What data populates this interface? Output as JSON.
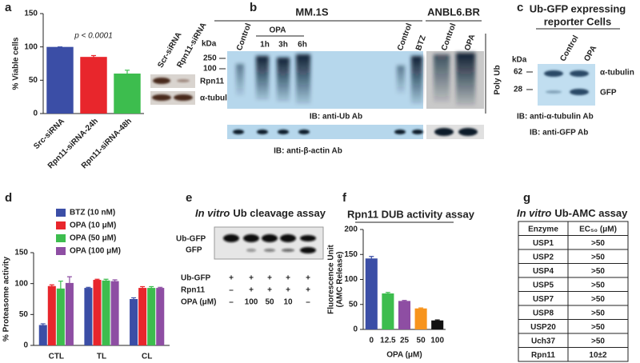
{
  "panel_labels": [
    "a",
    "b",
    "c",
    "d",
    "e",
    "f",
    "g"
  ],
  "chart_data": [
    {
      "type": "bar",
      "y_label": "% Viable cells",
      "annotation": "p < 0.0001",
      "categories": [
        "Src-siRNA",
        "Rpn11-siRNA-24h",
        "Rpn11-siRNA-48h"
      ],
      "values": [
        100,
        85,
        60
      ],
      "errors": [
        0,
        2,
        5
      ],
      "colors": [
        "#3b4ea6",
        "#e8262c",
        "#3dbd4e"
      ],
      "ylim": [
        0,
        150
      ],
      "yticks": [
        0,
        50,
        100,
        150
      ]
    },
    {
      "type": "bar",
      "y_label": "% Proteasome activity",
      "categories": [
        "CTL",
        "TL",
        "CL"
      ],
      "legend": "top-left",
      "series": [
        {
          "name": "BTZ (10 nM)",
          "color": "#3b4ea6",
          "values": [
            33,
            93,
            75
          ],
          "errors": [
            2,
            1,
            2
          ]
        },
        {
          "name": "OPA (10 μM)",
          "color": "#e8262c",
          "values": [
            96,
            106,
            93
          ],
          "errors": [
            2,
            1,
            2
          ]
        },
        {
          "name": "OPA (50 μM)",
          "color": "#3dbd4e",
          "values": [
            92,
            105,
            93
          ],
          "errors": [
            12,
            2,
            2
          ]
        },
        {
          "name": "OPA (100 μM)",
          "color": "#8e4ea3",
          "values": [
            101,
            104,
            93
          ],
          "errors": [
            10,
            2,
            1
          ]
        }
      ],
      "ylim": [
        0,
        150
      ],
      "yticks": [
        0,
        50,
        100,
        150
      ]
    },
    {
      "type": "bar",
      "title": "Rpn11 DUB activity assay",
      "y_label": [
        "Fluorescence Unit",
        "(AMC Release)"
      ],
      "x_label": "OPA (μM)",
      "categories": [
        "0",
        "12.5",
        "25",
        "50",
        "100"
      ],
      "values": [
        142,
        72,
        57,
        42,
        18
      ],
      "errors": [
        4,
        2,
        1,
        1,
        1
      ],
      "colors": [
        "#3b4ea6",
        "#3dbd4e",
        "#8e4ea3",
        "#f7941d",
        "#111111"
      ],
      "ylim": [
        0,
        200
      ],
      "yticks": [
        0,
        50,
        100,
        150,
        200
      ]
    }
  ],
  "blot_a": {
    "lanes": [
      "Scr-siRNA",
      "Rpn11-siRNA"
    ],
    "bands": [
      "Rpn11",
      "α-tubulin"
    ]
  },
  "blot_b": {
    "groups": [
      "MM.1S",
      "ANBL6.BR"
    ],
    "kda": "kDa",
    "markers": [
      "250",
      "100"
    ],
    "lanes": [
      "Control",
      "Control",
      "BTZ",
      "Control",
      "OPA"
    ],
    "opa": "OPA",
    "times": [
      "1h",
      "3h",
      "6h"
    ],
    "side": "Poly Ub",
    "ib_top": "IB: anti-Ub Ab",
    "ib_bottom": "IB: anti-β-actin Ab"
  },
  "blot_c": {
    "title": [
      "Ub-GFP expressing",
      "reporter Cells"
    ],
    "kda": "kDa",
    "markers": [
      "62",
      "28"
    ],
    "lanes": [
      "Control",
      "OPA"
    ],
    "bands": [
      "α-tubulin",
      "GFP"
    ],
    "ib": [
      "IB: anti-α-tubulin Ab",
      "IB: anti-GFP Ab"
    ]
  },
  "blot_e": {
    "title_italic": "In vitro",
    "title_rest": "Ub cleavage assay",
    "bands": [
      "Ub-GFP",
      "GFP"
    ],
    "rows": [
      {
        "label": "Ub-GFP",
        "cells": [
          "+",
          "+",
          "+",
          "+",
          "+"
        ]
      },
      {
        "label": "Rpn11",
        "cells": [
          "–",
          "+",
          "+",
          "+",
          "+"
        ]
      },
      {
        "label": "OPA (μM)",
        "cells": [
          "–",
          "100",
          "50",
          "10",
          "–"
        ]
      }
    ]
  },
  "table_g": {
    "title_italic": "In vitro",
    "title_rest": "Ub-AMC assay",
    "header": [
      "Enzyme",
      "EC₅₀ (μM)"
    ],
    "rows": [
      [
        "USP1",
        ">50"
      ],
      [
        "USP2",
        ">50"
      ],
      [
        "USP4",
        ">50"
      ],
      [
        "USP5",
        ">50"
      ],
      [
        "USP7",
        ">50"
      ],
      [
        "USP8",
        ">50"
      ],
      [
        "USP20",
        ">50"
      ],
      [
        "Uch37",
        ">50"
      ],
      [
        "Rpn11",
        "10±2"
      ]
    ]
  }
}
